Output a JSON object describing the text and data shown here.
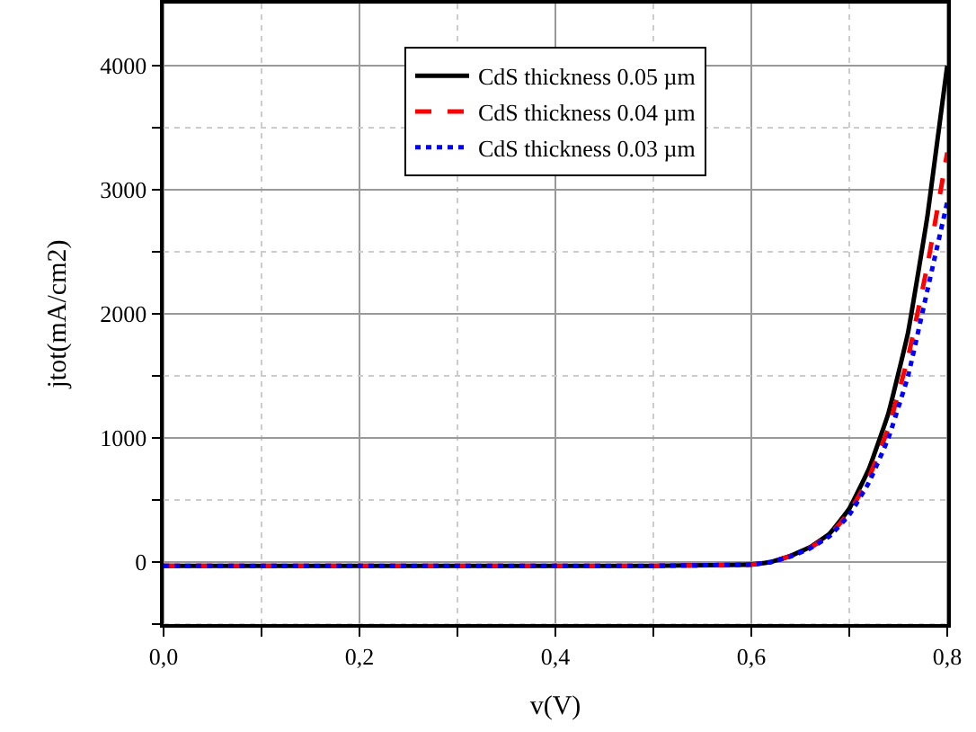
{
  "chart_data": {
    "type": "line",
    "xlabel": "v(V)",
    "ylabel": "jtot(mA/cm2)",
    "x": [
      0,
      0.1,
      0.2,
      0.3,
      0.4,
      0.5,
      0.56,
      0.6,
      0.62,
      0.64,
      0.66,
      0.68,
      0.7,
      0.72,
      0.74,
      0.76,
      0.78,
      0.8
    ],
    "series": [
      {
        "name": "CdS thickness 0.05 µm",
        "color": "#000000",
        "line_style": "solid",
        "values": [
          -30,
          -30,
          -30,
          -30,
          -30,
          -30,
          -25,
          -20,
          0,
          50,
          120,
          230,
          430,
          750,
          1200,
          1850,
          2800,
          4000
        ]
      },
      {
        "name": "CdS thickness 0.04 µm",
        "color": "#ff0000",
        "line_style": "dashed",
        "values": [
          -30,
          -30,
          -30,
          -30,
          -30,
          -30,
          -25,
          -20,
          0,
          48,
          115,
          220,
          400,
          680,
          1080,
          1650,
          2400,
          3300
        ]
      },
      {
        "name": "CdS thickness 0.03 µm",
        "color": "#0000ff",
        "line_style": "dotted",
        "values": [
          -30,
          -30,
          -30,
          -30,
          -30,
          -30,
          -25,
          -20,
          0,
          45,
          110,
          210,
          380,
          640,
          1000,
          1500,
          2200,
          2900
        ]
      }
    ],
    "xlim": [
      0,
      0.8
    ],
    "xticks": [
      {
        "value": 0,
        "label": "0,0"
      },
      {
        "value": 0.1,
        "label": null
      },
      {
        "value": 0.2,
        "label": "0,2"
      },
      {
        "value": 0.3,
        "label": null
      },
      {
        "value": 0.4,
        "label": "0,4"
      },
      {
        "value": 0.5,
        "label": null
      },
      {
        "value": 0.6,
        "label": "0,6"
      },
      {
        "value": 0.7,
        "label": null
      },
      {
        "value": 0.8,
        "label": "0,8"
      }
    ],
    "ylim": [
      -500,
      4500
    ],
    "yticks": [
      {
        "value": -500,
        "label": null
      },
      0,
      {
        "value": 500,
        "label": null
      },
      1000,
      {
        "value": 1500,
        "label": null
      },
      2000,
      {
        "value": 2500,
        "label": null
      },
      3000,
      {
        "value": 3500,
        "label": null
      },
      4000
    ],
    "grid": true,
    "legend": "top"
  }
}
